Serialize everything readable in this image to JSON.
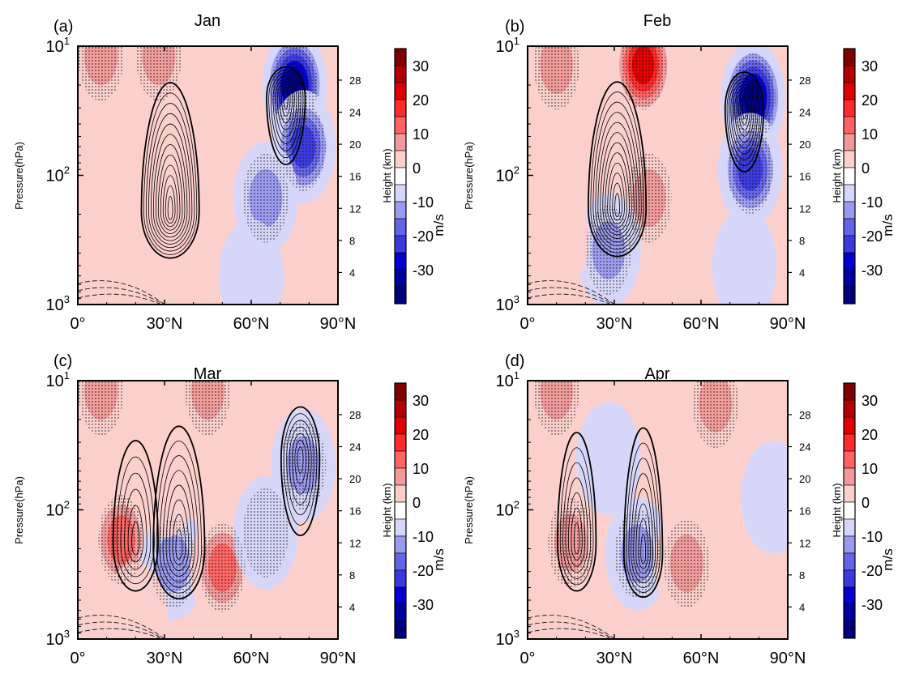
{
  "figure": {
    "type": "contour",
    "color_unit": "m/s",
    "left_axis_label": "Pressure(hPa)",
    "right_axis_label": "Height (km)",
    "x_ticks": [
      "0°",
      "30°N",
      "60°N",
      "90°N"
    ],
    "x_values": [
      0,
      30,
      60,
      90
    ],
    "pressure_ticks": [
      {
        "base": "10",
        "exp": "1",
        "value": 10
      },
      {
        "base": "10",
        "exp": "2",
        "value": 100
      },
      {
        "base": "10",
        "exp": "3",
        "value": 1000
      }
    ],
    "height_ticks": [
      "4",
      "8",
      "12",
      "16",
      "20",
      "24",
      "28"
    ],
    "height_values": [
      4,
      8,
      12,
      16,
      20,
      24,
      28
    ],
    "colorbar_labels": [
      "30",
      "20",
      "10",
      "0",
      "-10",
      "-20",
      "-30"
    ],
    "colorbar_colors": [
      "#7f0000",
      "#b20000",
      "#e00000",
      "#ff2a2a",
      "#ff6363",
      "#f29a9a",
      "#fbd0cc",
      "#ffffff",
      "#d6d6fa",
      "#9a9af0",
      "#6464e8",
      "#3a3ae0",
      "#0000d0",
      "#0000a0",
      "#00007a"
    ]
  },
  "chart_data": [
    {
      "panel": "(a)",
      "title": "Jan",
      "type": "heatmap",
      "x": "latitude (°N)",
      "y": "pressure (hPa)",
      "xlim": [
        0,
        90
      ],
      "ylim": [
        1000,
        10
      ],
      "anomaly_blobs": [
        {
          "lat": 32,
          "p": 200,
          "value": 6
        },
        {
          "lat": 75,
          "p": 20,
          "value": -30
        },
        {
          "lat": 78,
          "p": 60,
          "value": -20
        },
        {
          "lat": 65,
          "p": 150,
          "value": -10
        },
        {
          "lat": 28,
          "p": 12,
          "value": 10
        },
        {
          "lat": 8,
          "p": 12,
          "value": 10
        },
        {
          "lat": 60,
          "p": 600,
          "value": -4
        },
        {
          "lat": 10,
          "p": 400,
          "value": 3
        }
      ],
      "contour_centers": [
        {
          "lat": 32,
          "p": 190,
          "rings": 12,
          "rx": 18,
          "dec": 0.45,
          "decUp": 0.75
        },
        {
          "lat": 72,
          "p": 25,
          "rings": 9,
          "rx": 12,
          "dec": 0.3,
          "decUp": 0.5
        }
      ]
    },
    {
      "panel": "(b)",
      "title": "Feb",
      "type": "heatmap",
      "x": "latitude (°N)",
      "y": "pressure (hPa)",
      "xlim": [
        0,
        90
      ],
      "ylim": [
        1000,
        10
      ],
      "anomaly_blobs": [
        {
          "lat": 40,
          "p": 14,
          "value": 28
        },
        {
          "lat": 42,
          "p": 150,
          "value": 14
        },
        {
          "lat": 28,
          "p": 380,
          "value": -12
        },
        {
          "lat": 78,
          "p": 25,
          "value": -30
        },
        {
          "lat": 77,
          "p": 90,
          "value": -20
        },
        {
          "lat": 10,
          "p": 14,
          "value": 10
        },
        {
          "lat": 10,
          "p": 300,
          "value": 4
        },
        {
          "lat": 75,
          "p": 500,
          "value": -3
        }
      ],
      "contour_centers": [
        {
          "lat": 31,
          "p": 180,
          "rings": 12,
          "rx": 18,
          "dec": 0.45,
          "decUp": 0.75
        },
        {
          "lat": 75,
          "p": 30,
          "rings": 10,
          "rx": 12,
          "dec": 0.3,
          "decUp": 0.5
        }
      ]
    },
    {
      "panel": "(c)",
      "title": "Mar",
      "type": "heatmap",
      "x": "latitude (°N)",
      "y": "pressure (hPa)",
      "xlim": [
        0,
        90
      ],
      "ylim": [
        1000,
        10
      ],
      "anomaly_blobs": [
        {
          "lat": 15,
          "p": 170,
          "value": 16
        },
        {
          "lat": 33,
          "p": 260,
          "value": -14
        },
        {
          "lat": 50,
          "p": 280,
          "value": 16
        },
        {
          "lat": 78,
          "p": 45,
          "value": -14
        },
        {
          "lat": 65,
          "p": 150,
          "value": -8
        },
        {
          "lat": 8,
          "p": 12,
          "value": 10
        },
        {
          "lat": 45,
          "p": 12,
          "value": 10
        },
        {
          "lat": 30,
          "p": 60,
          "value": 3
        },
        {
          "lat": 20,
          "p": 700,
          "value": 2
        }
      ],
      "contour_centers": [
        {
          "lat": 20,
          "p": 180,
          "rings": 6,
          "rx": 14,
          "dec": 0.45,
          "decUp": 0.6
        },
        {
          "lat": 35,
          "p": 200,
          "rings": 8,
          "rx": 16,
          "dec": 0.5,
          "decUp": 0.7
        },
        {
          "lat": 77,
          "p": 40,
          "rings": 7,
          "rx": 12,
          "dec": 0.4,
          "decUp": 0.6
        }
      ]
    },
    {
      "panel": "(d)",
      "title": "Apr",
      "type": "heatmap",
      "x": "latitude (°N)",
      "y": "pressure (hPa)",
      "xlim": [
        0,
        90
      ],
      "ylim": [
        1000,
        10
      ],
      "anomaly_blobs": [
        {
          "lat": 15,
          "p": 180,
          "value": 10
        },
        {
          "lat": 38,
          "p": 220,
          "value": -14
        },
        {
          "lat": 55,
          "p": 260,
          "value": 12
        },
        {
          "lat": 65,
          "p": 15,
          "value": 14
        },
        {
          "lat": 10,
          "p": 12,
          "value": 10
        },
        {
          "lat": 28,
          "p": 40,
          "value": -3
        },
        {
          "lat": 72,
          "p": 250,
          "value": 3
        },
        {
          "lat": 85,
          "p": 80,
          "value": -3
        }
      ],
      "contour_centers": [
        {
          "lat": 17,
          "p": 180,
          "rings": 7,
          "rx": 12,
          "dec": 0.45,
          "decUp": 0.65
        },
        {
          "lat": 40,
          "p": 220,
          "rings": 8,
          "rx": 12,
          "dec": 0.45,
          "decUp": 0.7
        }
      ]
    }
  ]
}
